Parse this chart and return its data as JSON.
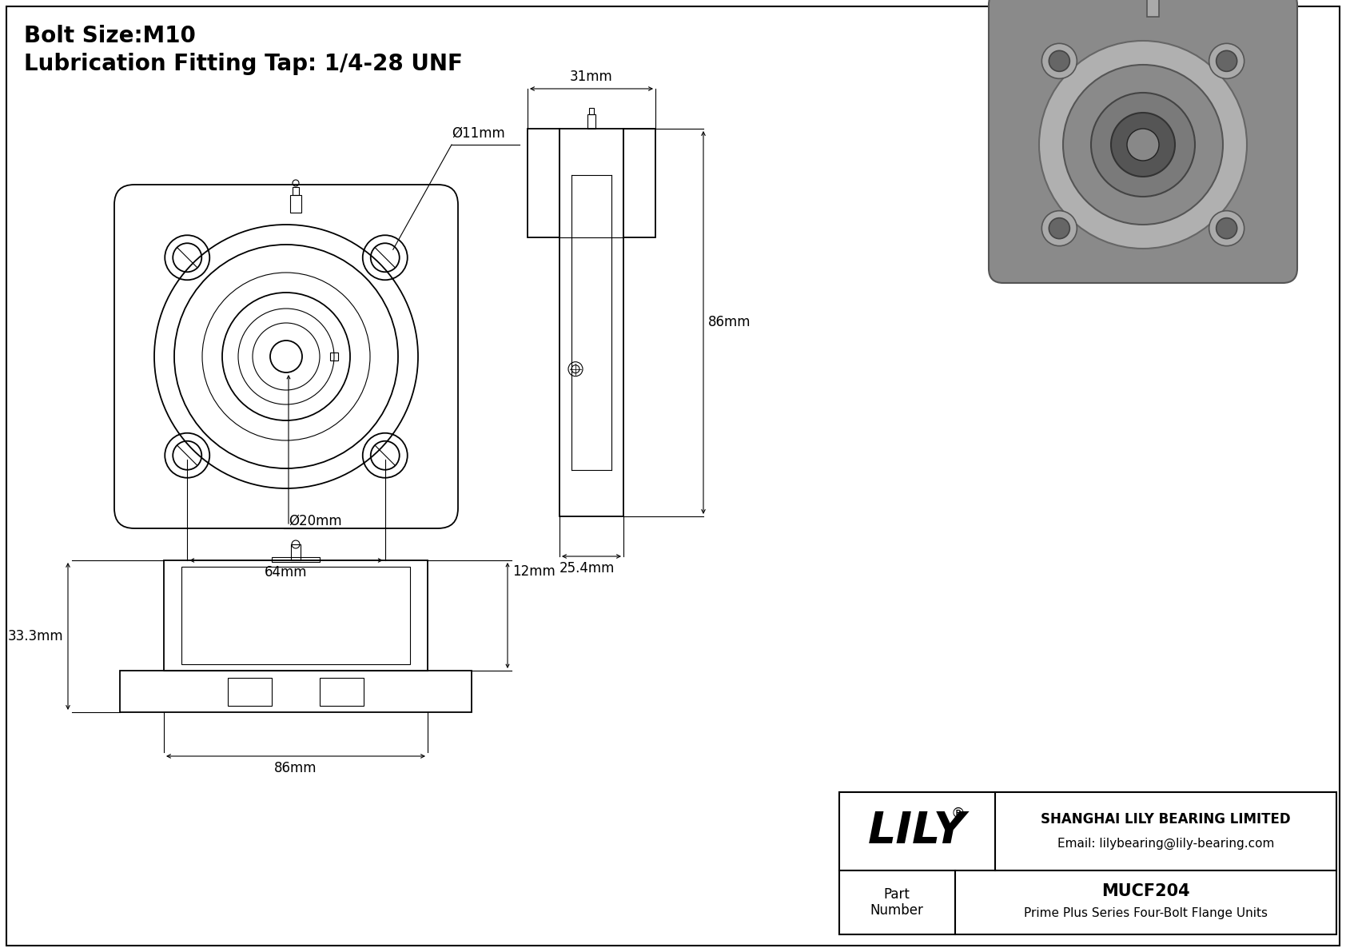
{
  "bg_color": "#ffffff",
  "line_color": "#000000",
  "title_line1": "Bolt Size:M10",
  "title_line2": "Lubrication Fitting Tap: 1/4-28 UNF",
  "title_fontsize": 20,
  "dim_fontsize": 12,
  "logo_text": "LILY",
  "logo_sup": "®",
  "company_line1": "SHANGHAI LILY BEARING LIMITED",
  "company_line2": "Email: lilybearing@lily-bearing.com",
  "part_label": "Part\nNumber",
  "part_number": "MUCF204",
  "part_desc": "Prime Plus Series Four-Bolt Flange Units",
  "dim_11mm": "Ø11mm",
  "dim_20mm": "Ø20mm",
  "dim_64mm": "64mm",
  "dim_31mm": "31mm",
  "dim_86mm_side": "86mm",
  "dim_25_4mm": "25.4mm",
  "dim_12mm": "12mm",
  "dim_33_3mm": "33.3mm",
  "dim_86mm_bot": "86mm"
}
